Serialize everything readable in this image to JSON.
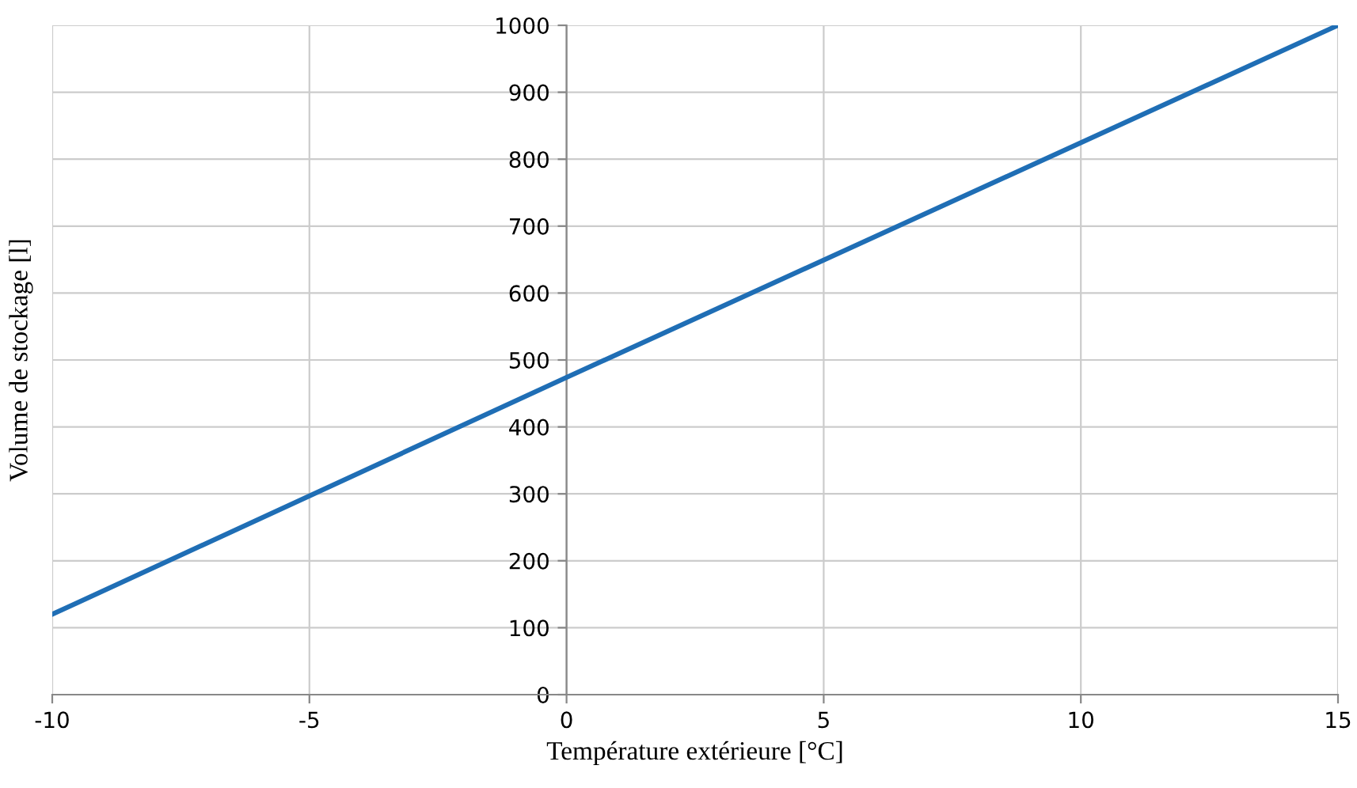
{
  "chart_data": {
    "type": "line",
    "xlabel": "Température extérieure [°C]",
    "ylabel": "Volume de stockage [l]",
    "x": [
      -10,
      0,
      15
    ],
    "series": [
      {
        "color": "#1f6eb5",
        "values": [
          120,
          474,
          1000
        ]
      }
    ],
    "xlim": [
      -10,
      15
    ],
    "xticks": [
      -10,
      -5,
      0,
      5,
      10,
      15
    ],
    "ylim": [
      0,
      1000
    ],
    "yticks": [
      0,
      100,
      200,
      300,
      400,
      500,
      600,
      700,
      800,
      900,
      1000
    ],
    "grid": true,
    "marker": "none",
    "line_style": "solid"
  }
}
